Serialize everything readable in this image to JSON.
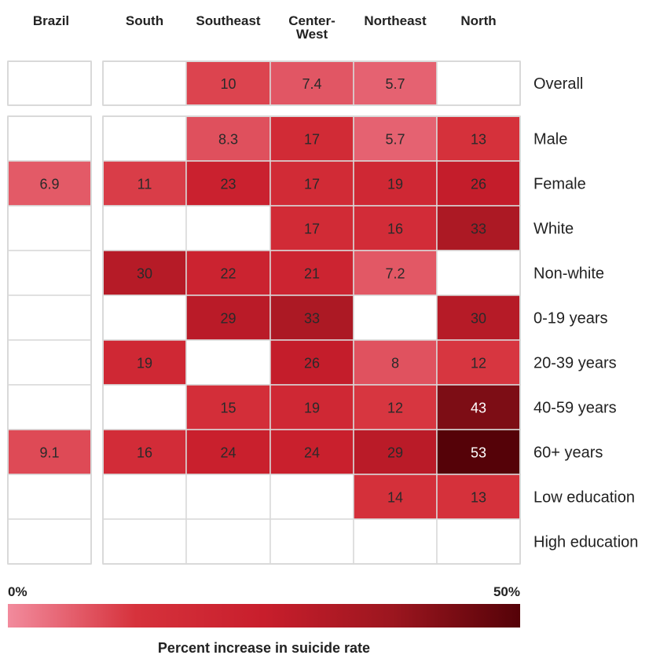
{
  "chart_data": {
    "type": "heatmap",
    "columns": [
      "Brazil",
      "South",
      "Southeast",
      "Center-West",
      "Northeast",
      "North"
    ],
    "column_headers": [
      [
        "Brazil"
      ],
      [
        "South"
      ],
      [
        "Southeast"
      ],
      [
        "Center-",
        "West"
      ],
      [
        "Northeast"
      ],
      [
        "North"
      ]
    ],
    "rows": [
      "Overall",
      "Male",
      "Female",
      "White",
      "Non-white",
      "0-19 years",
      "20-39 years",
      "40-59 years",
      "60+ years",
      "Low education",
      "High education"
    ],
    "values": [
      [
        null,
        null,
        10,
        7.4,
        5.7,
        null
      ],
      [
        null,
        null,
        8.3,
        17,
        5.7,
        13
      ],
      [
        6.9,
        11,
        23,
        17,
        19,
        26
      ],
      [
        null,
        null,
        null,
        17,
        16,
        33
      ],
      [
        null,
        30,
        22,
        21,
        7.2,
        null
      ],
      [
        null,
        null,
        29,
        33,
        null,
        30
      ],
      [
        null,
        19,
        null,
        26,
        8,
        12
      ],
      [
        null,
        null,
        15,
        19,
        12,
        43
      ],
      [
        9.1,
        16,
        24,
        24,
        29,
        53
      ],
      [
        null,
        null,
        null,
        null,
        14,
        13
      ],
      [
        null,
        null,
        null,
        null,
        null,
        null
      ]
    ],
    "color_scale": {
      "min": 0,
      "max": 50,
      "min_label": "0%",
      "max_label": "50%",
      "title": "Percent increase in suicide rate",
      "colors": [
        "#f28b9d",
        "#d6323c",
        "#c81e2c",
        "#9c161f",
        "#550208"
      ]
    },
    "empty_cell_color": "#ffffff",
    "grid_line_color": "#d9d9d9"
  }
}
